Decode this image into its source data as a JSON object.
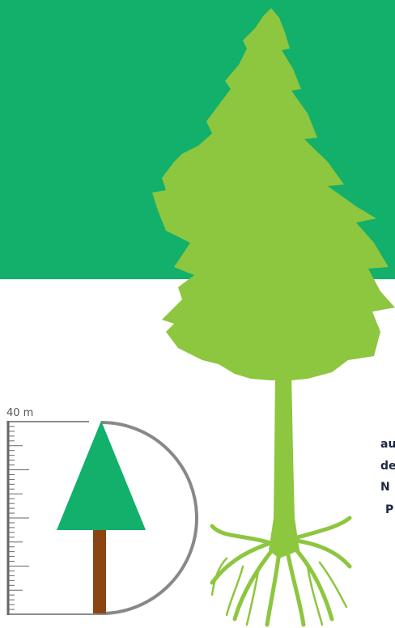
{
  "scale": {
    "label": "40 m"
  },
  "fragments": [
    "au",
    "de",
    "N",
    "P"
  ]
}
